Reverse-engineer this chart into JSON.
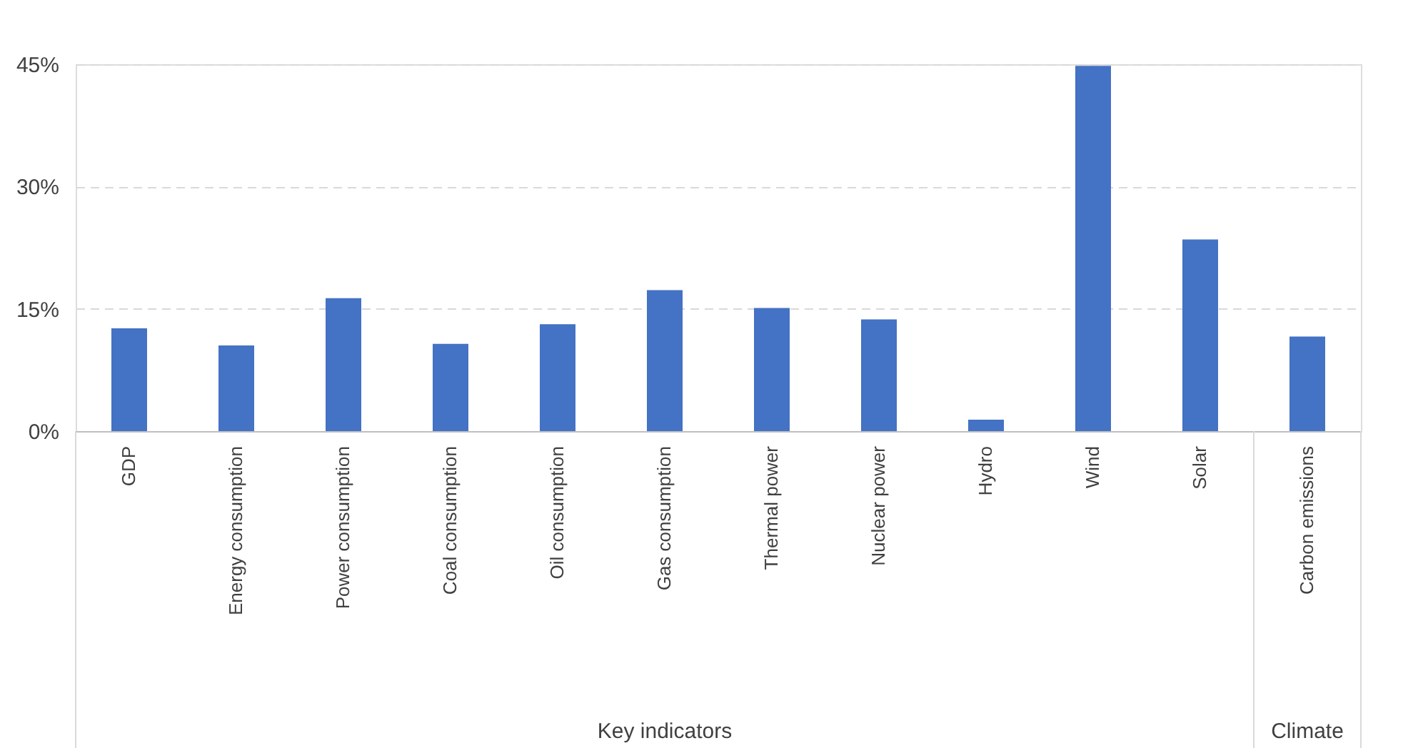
{
  "chart_data": {
    "type": "bar",
    "categories": [
      "GDP",
      "Energy consumption",
      "Power consumption",
      "Coal consumption",
      "Oil consumption",
      "Gas consumption",
      "Thermal power",
      "Nuclear power",
      "Hydro",
      "Wind",
      "Solar",
      "Carbon emissions"
    ],
    "values": [
      12.6,
      10.5,
      16.3,
      10.7,
      13.1,
      17.3,
      15.1,
      13.7,
      1.4,
      44.8,
      23.5,
      11.6
    ],
    "color": "#4472c4",
    "ylim": [
      0,
      45
    ],
    "yticks": [
      {
        "value": 0,
        "label": "0%"
      },
      {
        "value": 15,
        "label": "15%"
      },
      {
        "value": 30,
        "label": "30%"
      },
      {
        "value": 45,
        "label": "45%"
      }
    ],
    "grid": "y",
    "annotations": [
      "Key indicators",
      "Climate"
    ]
  }
}
